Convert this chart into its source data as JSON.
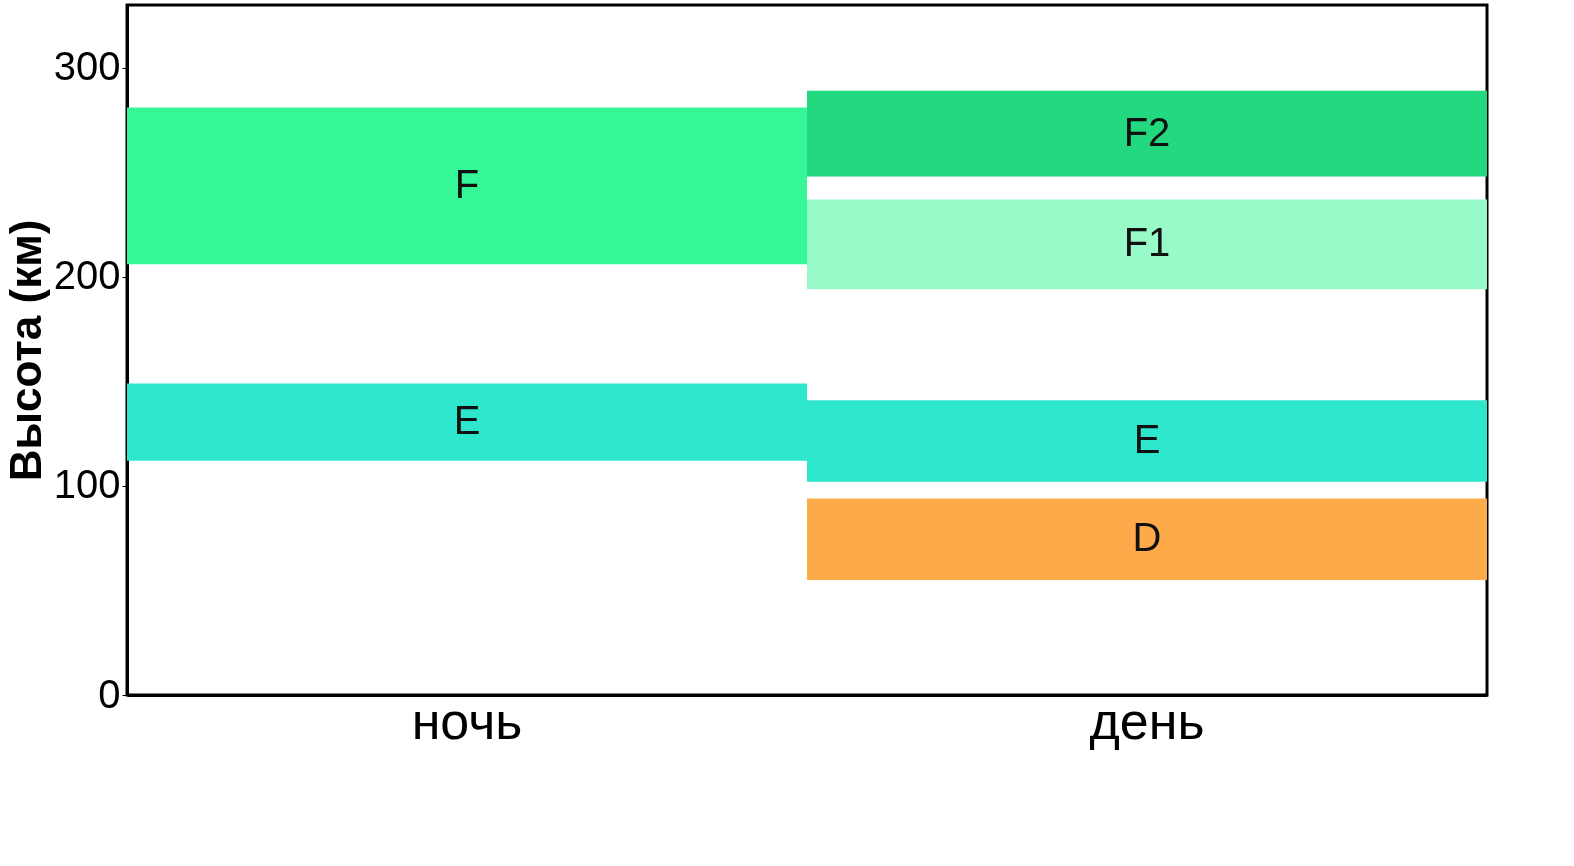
{
  "chart_data": {
    "type": "bar",
    "ylabel": "Высота (км)",
    "categories": [
      "ночь",
      "день"
    ],
    "ylim": [
      0,
      330
    ],
    "yticks": [
      0,
      100,
      200,
      300
    ],
    "grid": false,
    "series": [
      {
        "name": "F",
        "color": "#35f797",
        "base": [
          206,
          null
        ],
        "values": [
          75,
          null
        ]
      },
      {
        "name": "E",
        "color": "#2de6cc",
        "base": [
          112,
          102
        ],
        "values": [
          37,
          39
        ]
      },
      {
        "name": "F2",
        "color": "#22d97f",
        "base": [
          null,
          248
        ],
        "values": [
          null,
          41
        ]
      },
      {
        "name": "F1",
        "color": "#98f9c9",
        "base": [
          null,
          194
        ],
        "values": [
          null,
          43
        ]
      },
      {
        "name": "D",
        "color": "#fdaa4a",
        "base": [
          null,
          55
        ],
        "values": [
          null,
          39
        ]
      }
    ]
  }
}
